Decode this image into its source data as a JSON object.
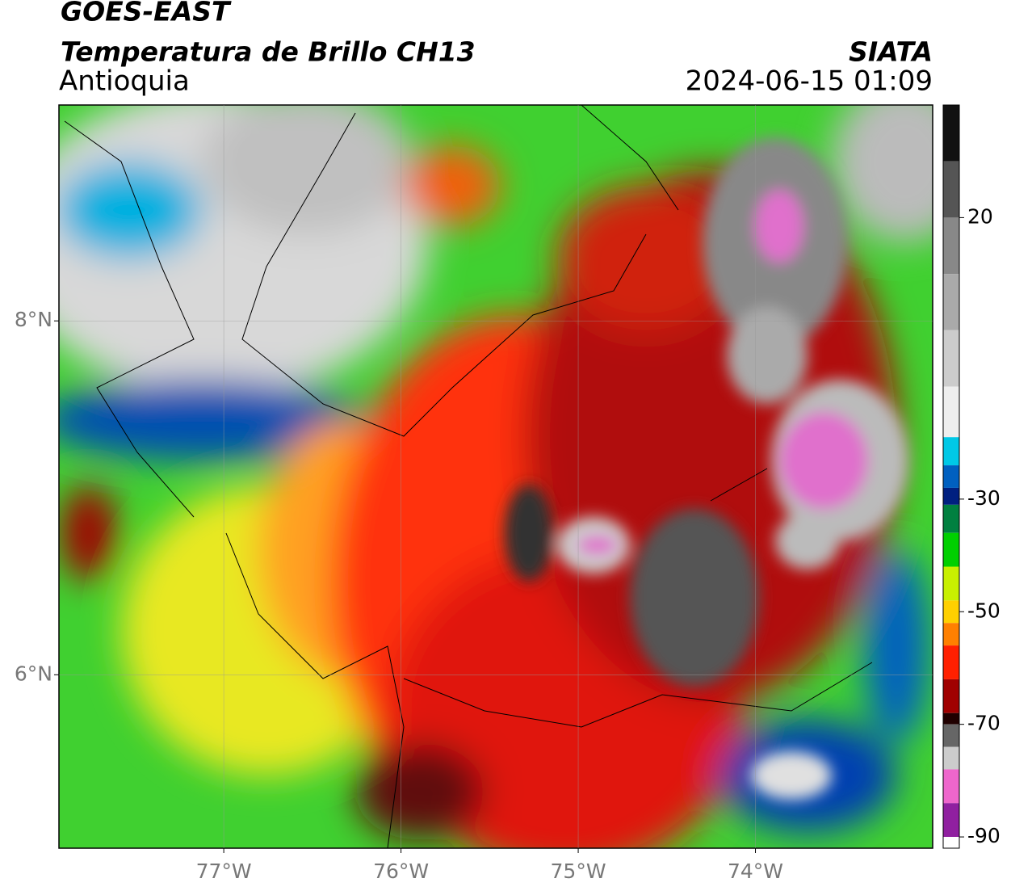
{
  "header": {
    "satellite": "GOES-EAST",
    "product": "Temperatura de Brillo CH13",
    "region": "Antioquia",
    "source": "SIATA",
    "datetime": "2024-06-15 01:09"
  },
  "map": {
    "xlim": [
      -77.93,
      -73.0
    ],
    "ylim": [
      5.02,
      9.22
    ],
    "xticks": [
      {
        "value": -77,
        "label": "77°W"
      },
      {
        "value": -76,
        "label": "76°W"
      },
      {
        "value": -75,
        "label": "75°W"
      },
      {
        "value": -74,
        "label": "74°W"
      }
    ],
    "yticks": [
      {
        "value": 6,
        "label": "6°N"
      },
      {
        "value": 8,
        "label": "8°N"
      }
    ],
    "grid": true
  },
  "colorbar": {
    "clim": [
      -92,
      40
    ],
    "ticks": [
      20,
      -30,
      -50,
      -70,
      -90
    ],
    "bands": [
      {
        "from": 30,
        "to": 40,
        "color": "#111111"
      },
      {
        "from": 20,
        "to": 30,
        "color": "#555555"
      },
      {
        "from": 10,
        "to": 20,
        "color": "#888888"
      },
      {
        "from": 0,
        "to": 10,
        "color": "#aaaaaa"
      },
      {
        "from": -10,
        "to": 0,
        "color": "#cccccc"
      },
      {
        "from": -19,
        "to": -10,
        "color": "#eeeeee"
      },
      {
        "from": -24,
        "to": -19,
        "color": "#00c8e6"
      },
      {
        "from": -28,
        "to": -24,
        "color": "#0060c0"
      },
      {
        "from": -31,
        "to": -28,
        "color": "#002080"
      },
      {
        "from": -36,
        "to": -31,
        "color": "#008040"
      },
      {
        "from": -42,
        "to": -36,
        "color": "#00d000"
      },
      {
        "from": -48,
        "to": -42,
        "color": "#c8f000"
      },
      {
        "from": -52,
        "to": -48,
        "color": "#ffd000"
      },
      {
        "from": -56,
        "to": -52,
        "color": "#ff8000"
      },
      {
        "from": -62,
        "to": -56,
        "color": "#ff2000"
      },
      {
        "from": -68,
        "to": -62,
        "color": "#a00000"
      },
      {
        "from": -70,
        "to": -68,
        "color": "#200000"
      },
      {
        "from": -74,
        "to": -70,
        "color": "#666666"
      },
      {
        "from": -78,
        "to": -74,
        "color": "#cccccc"
      },
      {
        "from": -84,
        "to": -78,
        "color": "#ee66cc"
      },
      {
        "from": -90,
        "to": -84,
        "color": "#9020a0"
      },
      {
        "from": -92,
        "to": -90,
        "color": "#ffffff"
      }
    ]
  }
}
